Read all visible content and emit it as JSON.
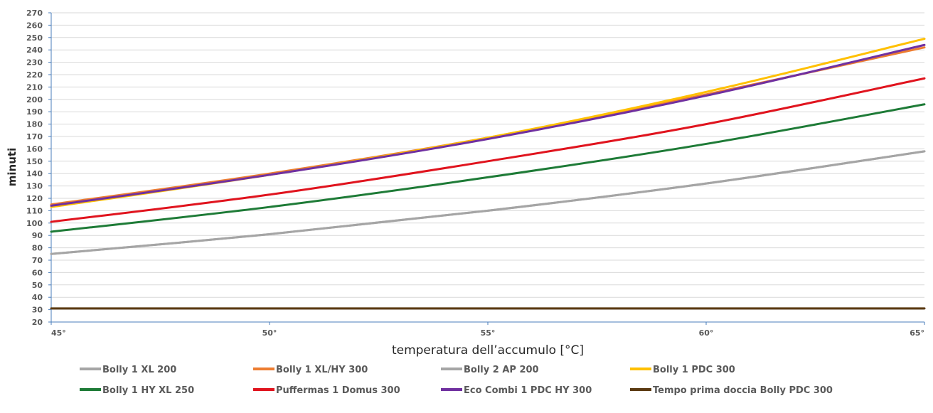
{
  "chart_data": {
    "type": "line",
    "title": "",
    "xlabel": "temperatura dell’accumulo [°C]",
    "ylabel": "minuti",
    "x": [
      45,
      50,
      55,
      60,
      65
    ],
    "x_tick_labels": [
      "45°",
      "50°",
      "55°",
      "60°",
      "65°"
    ],
    "ylim": [
      20,
      270
    ],
    "y_tick_step": 10,
    "grid": "horizontal",
    "legend_position": "bottom",
    "series": [
      {
        "name": "Bolly 1 XL 200",
        "color": "#A5A5A5",
        "values": [
          75,
          91,
          110,
          132,
          158
        ]
      },
      {
        "name": "Bolly 1 XL/HY 300",
        "color": "#ED7D31",
        "values": [
          115,
          140,
          169,
          204,
          242
        ]
      },
      {
        "name": "Bolly 2 AP 200",
        "color": "#A5A5A5",
        "values": [
          75,
          91,
          110,
          132,
          158
        ]
      },
      {
        "name": "Bolly 1 PDC 300",
        "color": "#FFC000",
        "values": [
          113,
          139,
          169,
          206,
          249
        ]
      },
      {
        "name": "Bolly 1 HY XL 250",
        "color": "#1E7B37",
        "values": [
          93,
          113,
          137,
          164,
          196
        ]
      },
      {
        "name": "Puffermas 1 Domus 300",
        "color": "#E0141E",
        "values": [
          101,
          123,
          150,
          180,
          217
        ]
      },
      {
        "name": "Eco Combi 1 PDC HY 300",
        "color": "#7030A0",
        "values": [
          114,
          139,
          168,
          203,
          244
        ]
      },
      {
        "name": "Tempo prima doccia Bolly PDC 300",
        "color": "#5B3A12",
        "values": [
          31,
          31,
          31,
          31,
          31
        ]
      }
    ]
  }
}
